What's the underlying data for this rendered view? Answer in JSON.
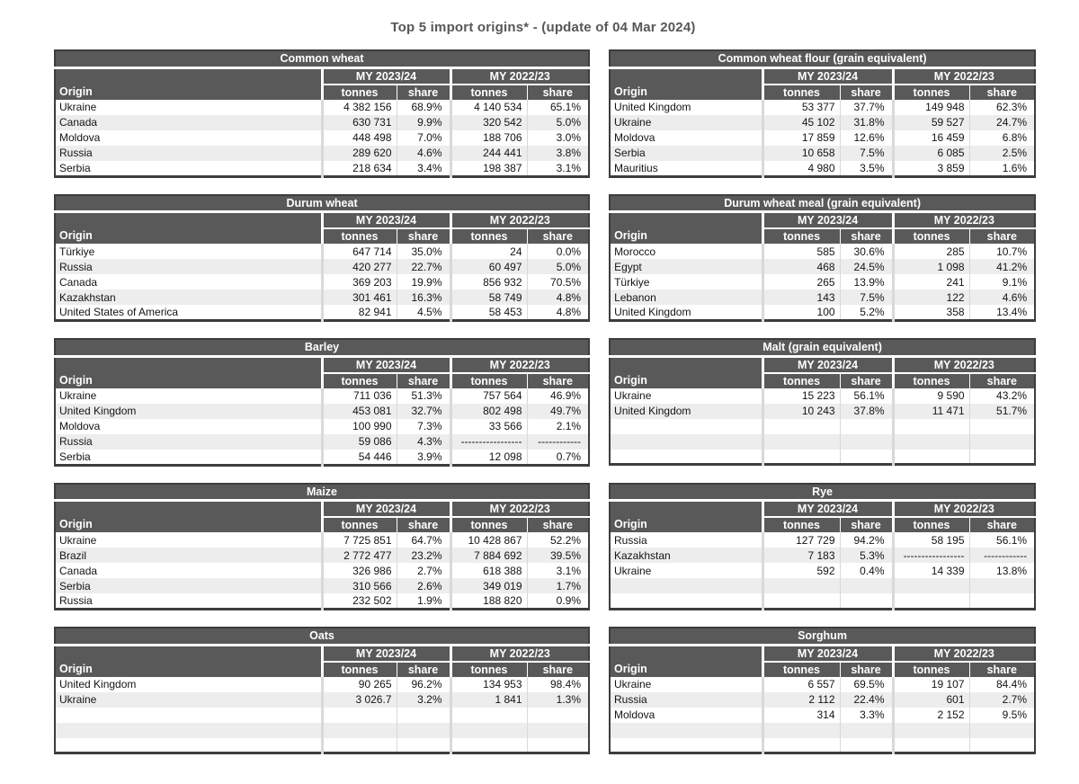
{
  "page_title": "Top 5 import origins* - (update of 04 Mar 2024)",
  "header_labels": {
    "origin": "Origin",
    "tonnes": "tonnes",
    "share": "share",
    "my_current": "MY 2023/24",
    "my_previous": "MY 2022/23"
  },
  "colors": {
    "header_bg": "#595959",
    "header_text": "#ffffff",
    "band_bg": "#ededed",
    "table_border": "#3d3d3d",
    "divider": "#d9d9d9",
    "title_text": "#575757"
  },
  "tables": [
    {
      "title": "Common wheat",
      "rows": [
        [
          "Ukraine",
          "4 382 156",
          "68.9%",
          "4 140 534",
          "65.1%"
        ],
        [
          "Canada",
          "630 731",
          "9.9%",
          "320 542",
          "5.0%"
        ],
        [
          "Moldova",
          "448 498",
          "7.0%",
          "188 706",
          "3.0%"
        ],
        [
          "Russia",
          "289 620",
          "4.6%",
          "244 441",
          "3.8%"
        ],
        [
          "Serbia",
          "218 634",
          "3.4%",
          "198 387",
          "3.1%"
        ]
      ]
    },
    {
      "title": "Common wheat flour (grain equivalent)",
      "rows": [
        [
          "United Kingdom",
          "53 377",
          "37.7%",
          "149 948",
          "62.3%"
        ],
        [
          "Ukraine",
          "45 102",
          "31.8%",
          "59 527",
          "24.7%"
        ],
        [
          "Moldova",
          "17 859",
          "12.6%",
          "16 459",
          "6.8%"
        ],
        [
          "Serbia",
          "10 658",
          "7.5%",
          "6 085",
          "2.5%"
        ],
        [
          "Mauritius",
          "4 980",
          "3.5%",
          "3 859",
          "1.6%"
        ]
      ]
    },
    {
      "title": "Durum wheat",
      "rows": [
        [
          "Türkiye",
          "647 714",
          "35.0%",
          "24",
          "0.0%"
        ],
        [
          "Russia",
          "420 277",
          "22.7%",
          "60 497",
          "5.0%"
        ],
        [
          "Canada",
          "369 203",
          "19.9%",
          "856 932",
          "70.5%"
        ],
        [
          "Kazakhstan",
          "301 461",
          "16.3%",
          "58 749",
          "4.8%"
        ],
        [
          "United States of America",
          "82 941",
          "4.5%",
          "58 453",
          "4.8%"
        ]
      ]
    },
    {
      "title": "Durum wheat meal (grain equivalent)",
      "rows": [
        [
          "Morocco",
          "585",
          "30.6%",
          "285",
          "10.7%"
        ],
        [
          "Egypt",
          "468",
          "24.5%",
          "1 098",
          "41.2%"
        ],
        [
          "Türkiye",
          "265",
          "13.9%",
          "241",
          "9.1%"
        ],
        [
          "Lebanon",
          "143",
          "7.5%",
          "122",
          "4.6%"
        ],
        [
          "United Kingdom",
          "100",
          "5.2%",
          "358",
          "13.4%"
        ]
      ]
    },
    {
      "title": "Barley",
      "rows": [
        [
          "Ukraine",
          "711 036",
          "51.3%",
          "757 564",
          "46.9%"
        ],
        [
          "United Kingdom",
          "453 081",
          "32.7%",
          "802 498",
          "49.7%"
        ],
        [
          "Moldova",
          "100 990",
          "7.3%",
          "33 566",
          "2.1%"
        ],
        [
          "Russia",
          "59 086",
          "4.3%",
          "-----------------",
          "------------"
        ],
        [
          "Serbia",
          "54 446",
          "3.9%",
          "12 098",
          "0.7%"
        ]
      ]
    },
    {
      "title": "Malt (grain equivalent)",
      "rows": [
        [
          "Ukraine",
          "15 223",
          "56.1%",
          "9 590",
          "43.2%"
        ],
        [
          "United Kingdom",
          "10 243",
          "37.8%",
          "11 471",
          "51.7%"
        ],
        [
          "",
          "",
          "",
          "",
          ""
        ],
        [
          "",
          "",
          "",
          "",
          ""
        ],
        [
          "",
          "",
          "",
          "",
          ""
        ]
      ]
    },
    {
      "title": "Maize",
      "rows": [
        [
          "Ukraine",
          "7 725 851",
          "64.7%",
          "10 428 867",
          "52.2%"
        ],
        [
          "Brazil",
          "2 772 477",
          "23.2%",
          "7 884 692",
          "39.5%"
        ],
        [
          "Canada",
          "326 986",
          "2.7%",
          "618 388",
          "3.1%"
        ],
        [
          "Serbia",
          "310 566",
          "2.6%",
          "349 019",
          "1.7%"
        ],
        [
          "Russia",
          "232 502",
          "1.9%",
          "188 820",
          "0.9%"
        ]
      ]
    },
    {
      "title": "Rye",
      "rows": [
        [
          "Russia",
          "127 729",
          "94.2%",
          "58 195",
          "56.1%"
        ],
        [
          "Kazakhstan",
          "7 183",
          "5.3%",
          "-----------------",
          "------------"
        ],
        [
          "Ukraine",
          "592",
          "0.4%",
          "14 339",
          "13.8%"
        ],
        [
          "",
          "",
          "",
          "",
          ""
        ],
        [
          "",
          "",
          "",
          "",
          ""
        ]
      ]
    },
    {
      "title": "Oats",
      "rows": [
        [
          "United Kingdom",
          "90 265",
          "96.2%",
          "134 953",
          "98.4%"
        ],
        [
          "Ukraine",
          "3 026.7",
          "3.2%",
          "1 841",
          "1.3%"
        ],
        [
          "",
          "",
          "",
          "",
          ""
        ],
        [
          "",
          "",
          "",
          "",
          ""
        ],
        [
          "",
          "",
          "",
          "",
          ""
        ]
      ]
    },
    {
      "title": "Sorghum",
      "rows": [
        [
          "Ukraine",
          "6 557",
          "69.5%",
          "19 107",
          "84.4%"
        ],
        [
          "Russia",
          "2 112",
          "22.4%",
          "601",
          "2.7%"
        ],
        [
          "Moldova",
          "314",
          "3.3%",
          "2 152",
          "9.5%"
        ],
        [
          "",
          "",
          "",
          "",
          ""
        ],
        [
          "",
          "",
          "",
          "",
          ""
        ]
      ]
    }
  ]
}
